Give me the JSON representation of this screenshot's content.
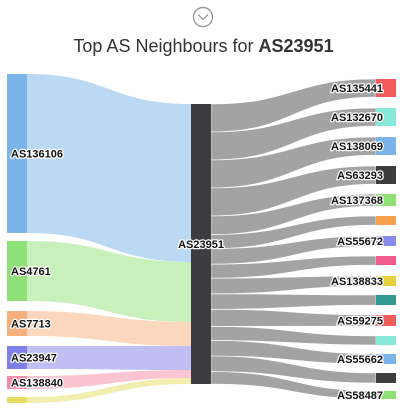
{
  "header": {
    "expand_icon": "chevron-down-circle-icon",
    "title_prefix": "Top AS Neighbours for ",
    "title_asn": "AS23951"
  },
  "colors": {
    "center_node": "#3d3d3f",
    "right_link": "#a3a3a3"
  },
  "center": {
    "label": "AS23951"
  },
  "left_nodes": [
    {
      "id": "as136106",
      "label": "AS136106",
      "color": "#7ab4e9",
      "link_color": "#bcd9f4"
    },
    {
      "id": "as4761",
      "label": "AS4761",
      "color": "#8fe077",
      "link_color": "#c7f0bb"
    },
    {
      "id": "as7713",
      "label": "AS7713",
      "color": "#f5b07c",
      "link_color": "#fad7bd"
    },
    {
      "id": "as23947",
      "label": "AS23947",
      "color": "#7f7fe8",
      "link_color": "#bfbff3"
    },
    {
      "id": "as138840",
      "label": "AS138840",
      "color": "#f68aa8",
      "link_color": "#fbc4d3"
    },
    {
      "id": "left-unlabeled",
      "label": "",
      "color": "#e6de60",
      "link_color": "#f2eeb0"
    }
  ],
  "right_nodes": [
    {
      "id": "as135441",
      "label": "AS135441",
      "color": "#f25c5c"
    },
    {
      "id": "as132670",
      "label": "AS132670",
      "color": "#86e8d7"
    },
    {
      "id": "as138069",
      "label": "AS138069",
      "color": "#7ab4e9"
    },
    {
      "id": "as63293",
      "label": "AS63293",
      "color": "#3d3d3f"
    },
    {
      "id": "as137368",
      "label": "AS137368",
      "color": "#8fe077"
    },
    {
      "id": "right-unlabeled-1",
      "label": "",
      "color": "#f5a04c"
    },
    {
      "id": "as55672",
      "label": "AS55672",
      "color": "#8a8aed"
    },
    {
      "id": "right-unlabeled-2",
      "label": "",
      "color": "#f05a8c"
    },
    {
      "id": "as138833",
      "label": "AS138833",
      "color": "#e6d03c"
    },
    {
      "id": "right-unlabeled-3",
      "label": "",
      "color": "#2e9990"
    },
    {
      "id": "as59275",
      "label": "AS59275",
      "color": "#f25c5c"
    },
    {
      "id": "right-unlabeled-4",
      "label": "",
      "color": "#86e8d7"
    },
    {
      "id": "as55662",
      "label": "AS55662",
      "color": "#7ab4e9"
    },
    {
      "id": "right-unlabeled-5",
      "label": "",
      "color": "#3d3d3f"
    },
    {
      "id": "as58487",
      "label": "AS58487",
      "color": "#8fe077"
    }
  ]
}
